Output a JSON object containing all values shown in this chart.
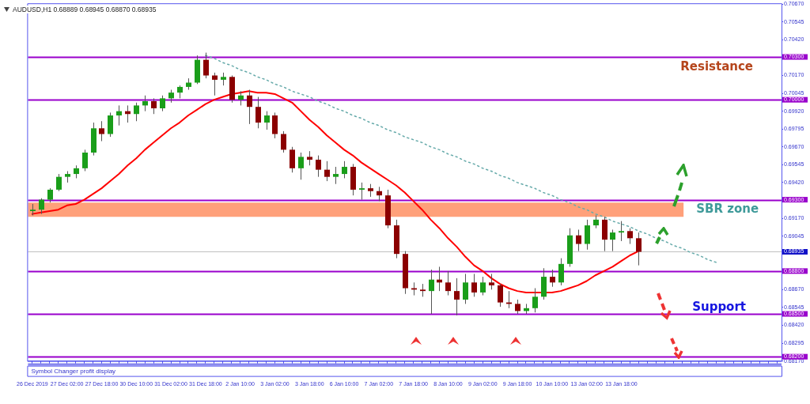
{
  "chart_data": {
    "type": "candlestick",
    "title": "AUDUSD,H1  0.68889 0.68945 0.68870 0.68935",
    "categories": [
      "26 Dec 2019",
      null,
      null,
      null,
      "27 Dec 02:00",
      null,
      null,
      null,
      "27 Dec 18:00",
      null,
      null,
      null,
      "30 Dec 10:00",
      null,
      null,
      null,
      "31 Dec 02:00",
      null,
      null,
      null,
      "31 Dec 18:00",
      null,
      null,
      null,
      "2 Jan 10:00",
      null,
      null,
      null,
      "3 Jan 02:00",
      null,
      null,
      null,
      "3 Jan 18:00",
      null,
      null,
      null,
      "6 Jan 10:00",
      null,
      null,
      null,
      "7 Jan 02:00",
      null,
      null,
      null,
      "7 Jan 18:00",
      null,
      null,
      null,
      "8 Jan 10:00",
      null,
      null,
      null,
      "9 Jan 02:00",
      null,
      null,
      null,
      "9 Jan 18:00",
      null,
      null,
      null,
      "10 Jan 10:00",
      null,
      null,
      null,
      "13 Jan 02:00",
      null,
      null,
      null,
      "13 Jan 18:00",
      null,
      null,
      null,
      null,
      null,
      null,
      null,
      null,
      null,
      null,
      null,
      null,
      null,
      null,
      null,
      null,
      null,
      null
    ],
    "ohlc": [
      [
        0.6922,
        0.6927,
        0.6919,
        0.6923
      ],
      [
        0.6923,
        0.6931,
        0.692,
        0.693
      ],
      [
        0.693,
        0.6938,
        0.6928,
        0.6937
      ],
      [
        0.6937,
        0.6948,
        0.6936,
        0.6946
      ],
      [
        0.6946,
        0.695,
        0.6942,
        0.6948
      ],
      [
        0.6948,
        0.6954,
        0.6945,
        0.6952
      ],
      [
        0.6952,
        0.6965,
        0.695,
        0.6963
      ],
      [
        0.6963,
        0.6984,
        0.6961,
        0.698
      ],
      [
        0.698,
        0.6985,
        0.6971,
        0.6976
      ],
      [
        0.6976,
        0.6991,
        0.6974,
        0.6989
      ],
      [
        0.6989,
        0.6996,
        0.6982,
        0.6992
      ],
      [
        0.6992,
        0.6996,
        0.6984,
        0.699
      ],
      [
        0.699,
        0.6998,
        0.6985,
        0.6996
      ],
      [
        0.6996,
        0.7003,
        0.6992,
        0.6999
      ],
      [
        0.6999,
        0.7001,
        0.699,
        0.6994
      ],
      [
        0.6994,
        0.7003,
        0.6992,
        0.7001
      ],
      [
        0.7001,
        0.7007,
        0.6998,
        0.7005
      ],
      [
        0.7005,
        0.701,
        0.7001,
        0.7009
      ],
      [
        0.7009,
        0.7015,
        0.7007,
        0.7012
      ],
      [
        0.7012,
        0.7031,
        0.7011,
        0.7028
      ],
      [
        0.7028,
        0.7033,
        0.7015,
        0.7017
      ],
      [
        0.7017,
        0.7019,
        0.7003,
        0.7014
      ],
      [
        0.7014,
        0.7019,
        0.701,
        0.7016
      ],
      [
        0.7016,
        0.7017,
        0.6998,
        0.7
      ],
      [
        0.7,
        0.7006,
        0.6996,
        0.7003
      ],
      [
        0.7003,
        0.7007,
        0.6983,
        0.6995
      ],
      [
        0.6995,
        0.7002,
        0.698,
        0.6984
      ],
      [
        0.6984,
        0.6992,
        0.6979,
        0.6989
      ],
      [
        0.6989,
        0.6991,
        0.6973,
        0.6976
      ],
      [
        0.6976,
        0.6978,
        0.6963,
        0.6965
      ],
      [
        0.6965,
        0.6967,
        0.6949,
        0.6952
      ],
      [
        0.6952,
        0.6963,
        0.6944,
        0.696
      ],
      [
        0.696,
        0.6964,
        0.6954,
        0.6958
      ],
      [
        0.6958,
        0.6961,
        0.6946,
        0.6951
      ],
      [
        0.6951,
        0.6957,
        0.6943,
        0.6946
      ],
      [
        0.6946,
        0.6953,
        0.6941,
        0.6948
      ],
      [
        0.6948,
        0.6957,
        0.6945,
        0.6953
      ],
      [
        0.6953,
        0.6955,
        0.6933,
        0.6937
      ],
      [
        0.6937,
        0.6942,
        0.693,
        0.6938
      ],
      [
        0.6938,
        0.6941,
        0.6932,
        0.6936
      ],
      [
        0.6936,
        0.6939,
        0.6929,
        0.6933
      ],
      [
        0.6933,
        0.6937,
        0.691,
        0.6912
      ],
      [
        0.6912,
        0.6916,
        0.6889,
        0.6892
      ],
      [
        0.6892,
        0.6894,
        0.6864,
        0.6868
      ],
      [
        0.6868,
        0.6872,
        0.6863,
        0.6867
      ],
      [
        0.6867,
        0.6871,
        0.6862,
        0.6866
      ],
      [
        0.6866,
        0.6881,
        0.685,
        0.6874
      ],
      [
        0.6874,
        0.6883,
        0.6866,
        0.6872
      ],
      [
        0.6872,
        0.688,
        0.6863,
        0.6866
      ],
      [
        0.6866,
        0.6875,
        0.6849,
        0.686
      ],
      [
        0.686,
        0.6878,
        0.6857,
        0.6872
      ],
      [
        0.6872,
        0.6878,
        0.6862,
        0.6865
      ],
      [
        0.6865,
        0.6876,
        0.6863,
        0.6872
      ],
      [
        0.6872,
        0.6878,
        0.6867,
        0.687
      ],
      [
        0.687,
        0.6871,
        0.6855,
        0.6858
      ],
      [
        0.6858,
        0.6866,
        0.6854,
        0.6857
      ],
      [
        0.6857,
        0.686,
        0.685,
        0.6852
      ],
      [
        0.6852,
        0.6857,
        0.685,
        0.6854
      ],
      [
        0.6854,
        0.6868,
        0.6851,
        0.6862
      ],
      [
        0.6862,
        0.6882,
        0.686,
        0.6876
      ],
      [
        0.6876,
        0.6881,
        0.6869,
        0.6872
      ],
      [
        0.6872,
        0.6889,
        0.687,
        0.6885
      ],
      [
        0.6885,
        0.691,
        0.6883,
        0.6905
      ],
      [
        0.6905,
        0.6909,
        0.6894,
        0.6899
      ],
      [
        0.6899,
        0.6916,
        0.6895,
        0.6912
      ],
      [
        0.6912,
        0.6919,
        0.691,
        0.6916
      ],
      [
        0.6916,
        0.6918,
        0.6894,
        0.6902
      ],
      [
        0.6902,
        0.6909,
        0.6894,
        0.6907
      ],
      [
        0.6907,
        0.6915,
        0.6901,
        0.6908
      ],
      [
        0.6908,
        0.691,
        0.6899,
        0.6903
      ],
      [
        0.6903,
        0.6907,
        0.6884,
        0.68935
      ],
      null,
      null,
      null,
      null,
      null,
      null,
      null,
      null,
      null,
      null,
      null,
      null,
      null,
      null,
      null,
      null
    ],
    "series": [
      {
        "type": "line",
        "color": "#ff0000",
        "values": [
          0.692,
          0.6921,
          0.6922,
          0.6923,
          0.6926,
          0.6927,
          0.693,
          0.6934,
          0.6938,
          0.6943,
          0.6948,
          0.6954,
          0.6959,
          0.6965,
          0.697,
          0.6975,
          0.698,
          0.6984,
          0.6989,
          0.6993,
          0.6997,
          0.7,
          0.7002,
          0.7004,
          0.7005,
          0.7006,
          0.7005,
          0.7005,
          0.7004,
          0.7001,
          0.6998,
          0.6992,
          0.6986,
          0.6981,
          0.6975,
          0.697,
          0.6965,
          0.6961,
          0.6956,
          0.6952,
          0.6948,
          0.6944,
          0.694,
          0.6935,
          0.6929,
          0.6923,
          0.6916,
          0.691,
          0.6903,
          0.6897,
          0.689,
          0.6884,
          0.688,
          0.6875,
          0.6871,
          0.6868,
          0.6866,
          0.6865,
          0.6865,
          0.6865,
          0.6865,
          0.6866,
          0.6868,
          0.687,
          0.6873,
          0.6877,
          0.688,
          0.6883,
          0.6887,
          0.6891,
          0.6894,
          null,
          null,
          null,
          null,
          null,
          null,
          null,
          null,
          null,
          null,
          null,
          null,
          null,
          null,
          null,
          null
        ]
      },
      {
        "type": "line",
        "color": "#66aaaa",
        "line_style": "dotted",
        "values": [
          null,
          null,
          null,
          null,
          null,
          null,
          null,
          null,
          null,
          null,
          null,
          null,
          null,
          null,
          null,
          null,
          null,
          null,
          null,
          null,
          0.7031,
          0.7029,
          0.7026,
          0.7024,
          0.7021,
          0.7019,
          0.7016,
          0.7014,
          0.7011,
          0.7009,
          0.7006,
          0.7004,
          0.7002,
          0.6999,
          0.6997,
          0.6994,
          0.6992,
          0.6989,
          0.6987,
          0.6984,
          0.6982,
          0.6979,
          0.6977,
          0.6974,
          0.6972,
          0.697,
          0.6967,
          0.6965,
          0.6962,
          0.696,
          0.6957,
          0.6955,
          0.6952,
          0.695,
          0.6947,
          0.6945,
          0.6942,
          0.694,
          0.6938,
          0.6935,
          0.6933,
          0.693,
          0.6928,
          0.6925,
          0.6923,
          0.692,
          0.6918,
          0.6915,
          0.6913,
          0.6911,
          0.6908,
          0.6906,
          0.6903,
          0.6901,
          0.6898,
          0.6896,
          0.6893,
          0.6891,
          0.6888,
          0.6886,
          null,
          null,
          null,
          null,
          null,
          null,
          null
        ]
      }
    ],
    "ylim": [
      0.6817,
      0.7067
    ],
    "yticks": [
      {
        "value": 0.7067,
        "label": "0.70670"
      },
      {
        "value": 0.70545,
        "label": "0.70545"
      },
      {
        "value": 0.7042,
        "label": "0.70420"
      },
      {
        "value": 0.7017,
        "label": "0.70170"
      },
      {
        "value": 0.70045,
        "label": "0.70045"
      },
      {
        "value": 0.6992,
        "label": "0.69920"
      },
      {
        "value": 0.69795,
        "label": "0.69795"
      },
      {
        "value": 0.6967,
        "label": "0.69670"
      },
      {
        "value": 0.69545,
        "label": "0.69545"
      },
      {
        "value": 0.6942,
        "label": "0.69420"
      },
      {
        "value": 0.6917,
        "label": "0.69170"
      },
      {
        "value": 0.69045,
        "label": "0.69045"
      },
      {
        "value": 0.6867,
        "label": "0.68670"
      },
      {
        "value": 0.68545,
        "label": "0.68545"
      },
      {
        "value": 0.6842,
        "label": "0.68420"
      },
      {
        "value": 0.68295,
        "label": "0.68295"
      },
      {
        "value": 0.6817,
        "label": "0.68170"
      }
    ],
    "ref_lines": [
      {
        "axis": "y",
        "value": 0.703,
        "label": "0.70300",
        "color": "#9900cc"
      },
      {
        "axis": "y",
        "value": 0.7,
        "label": "0.70000",
        "color": "#9900cc"
      },
      {
        "axis": "y",
        "value": 0.693,
        "label": "0.69300",
        "color": "#9900cc"
      },
      {
        "axis": "y",
        "value": 0.68935,
        "label": "0.68935",
        "color": "#c0c0c0"
      },
      {
        "axis": "y",
        "value": 0.688,
        "label": "0.68800",
        "color": "#9900cc"
      },
      {
        "axis": "y",
        "value": 0.685,
        "label": "0.68500",
        "color": "#9900cc"
      },
      {
        "axis": "y",
        "value": 0.682,
        "label": "0.68200",
        "color": "#9900cc"
      }
    ],
    "bands": [
      {
        "axis": "y",
        "from": 0.6918,
        "to": 0.6928,
        "label": "SBR zone",
        "color": "#ffa07a"
      }
    ],
    "annotations": [
      "Resistance",
      "Support",
      "Symbol Changer profit display"
    ],
    "grid": false,
    "legend": false
  }
}
